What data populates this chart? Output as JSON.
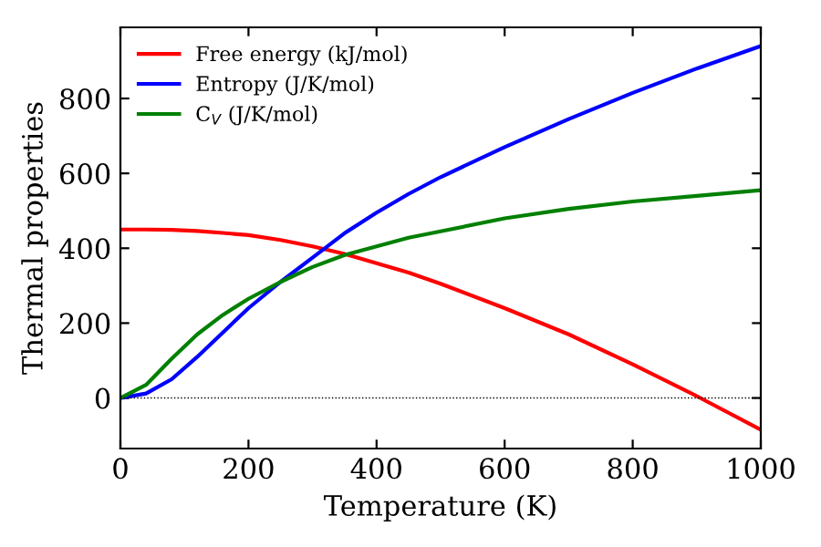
{
  "chart_data": {
    "type": "line",
    "xlabel": "Temperature (K)",
    "ylabel": "Thermal properties",
    "x": [
      0,
      40,
      80,
      120,
      160,
      200,
      250,
      300,
      350,
      400,
      450,
      500,
      600,
      700,
      800,
      900,
      1000
    ],
    "series": [
      {
        "name": "Free energy (kJ/mol)",
        "color": "#ff0000",
        "values": [
          450,
          450,
          449,
          446,
          441,
          435,
          422,
          405,
          385,
          360,
          335,
          305,
          240,
          170,
          90,
          5,
          -85
        ]
      },
      {
        "name": "Entropy (J/K/mol)",
        "color": "#0000ff",
        "values": [
          0,
          12,
          50,
          110,
          175,
          240,
          310,
          375,
          440,
          495,
          545,
          590,
          670,
          745,
          815,
          880,
          940
        ]
      },
      {
        "name": "C$_{V}$ (J/K/mol)",
        "color": "#008000",
        "values": [
          0,
          35,
          105,
          170,
          222,
          265,
          310,
          350,
          382,
          405,
          428,
          445,
          480,
          505,
          525,
          540,
          555
        ]
      }
    ],
    "xlim": [
      0,
      1000
    ],
    "xticks": [
      0,
      200,
      400,
      600,
      800,
      1000
    ],
    "ylim": [
      -135,
      990
    ],
    "yticks": [
      0,
      200,
      400,
      600,
      800
    ],
    "ref_lines": [
      {
        "axis": "y",
        "value": 0,
        "color": "#000000",
        "line_style": "dotted"
      }
    ],
    "legend": "top left",
    "grid": false,
    "marker": "none",
    "line_style": "solid"
  }
}
